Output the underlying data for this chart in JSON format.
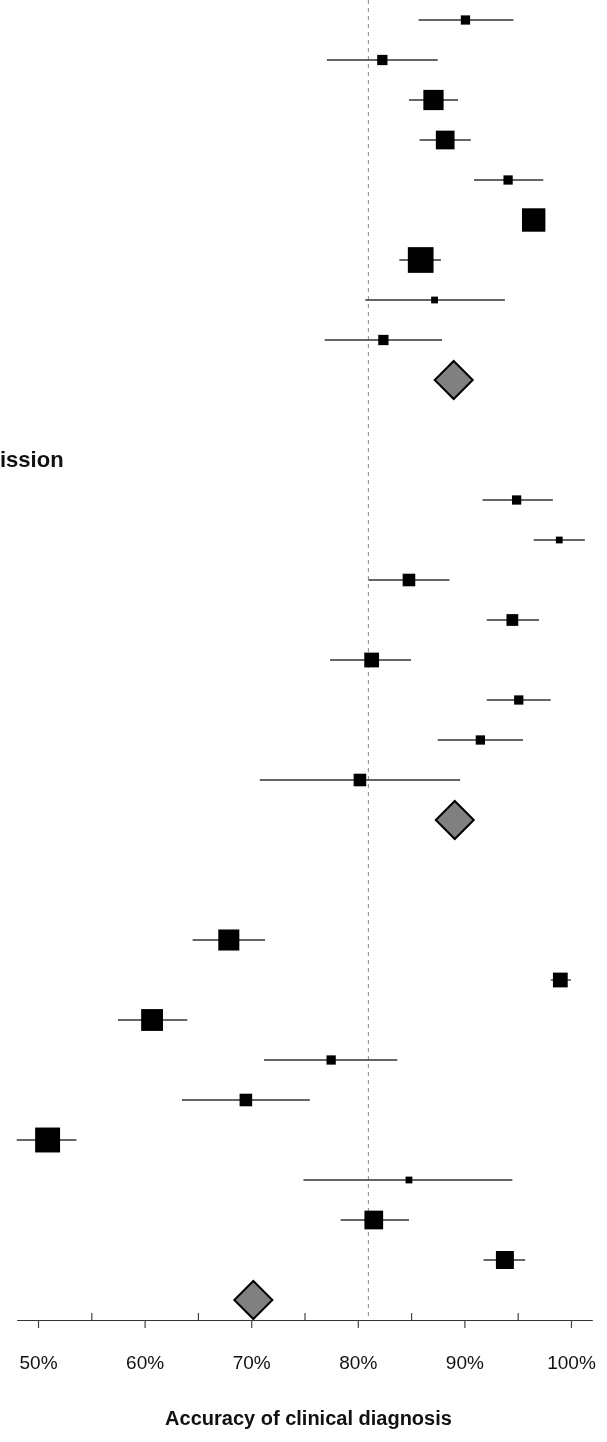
{
  "chart_data": {
    "type": "bubble",
    "orientation": "horizontal",
    "xlabel": "Accuracy of clinical diagnosis",
    "annotations": [
      "ission"
    ],
    "categories": [
      null,
      null,
      null,
      null,
      null,
      null,
      null,
      null,
      null,
      null,
      null,
      null,
      null,
      null,
      null,
      null,
      null,
      null,
      null,
      null,
      null,
      null,
      null,
      null,
      null,
      null,
      null,
      null,
      null,
      null,
      null,
      null,
      null
    ],
    "xlim": [
      48,
      102
    ],
    "xticks": [
      {
        "value": 50,
        "label": "50%"
      },
      {
        "value": 55,
        "label": null
      },
      {
        "value": 60,
        "label": "60%"
      },
      {
        "value": 65,
        "label": null
      },
      {
        "value": 70,
        "label": "70%"
      },
      {
        "value": 75,
        "label": null
      },
      {
        "value": 80,
        "label": "80%"
      },
      {
        "value": 85,
        "label": null
      },
      {
        "value": 90,
        "label": "90%"
      },
      {
        "value": 95,
        "label": null
      },
      {
        "value": 100,
        "label": "100%"
      }
    ],
    "ref_lines": [
      {
        "axis": "x",
        "value": 81,
        "color": "#999999",
        "line_style": "dashed"
      }
    ],
    "grid": false,
    "tick_labels": "x",
    "series": [
      {
        "marker": "square",
        "color": "#000000",
        "values": [
          90.1,
          82.3,
          87.1,
          88.2,
          94.1,
          96.5,
          85.9,
          87.2,
          82.4,
          null,
          null,
          null,
          94.9,
          98.9,
          84.8,
          94.5,
          81.3,
          95.1,
          91.5,
          80.2,
          null,
          null,
          null,
          67.9,
          99.0,
          60.7,
          77.5,
          69.5,
          50.9,
          84.8,
          81.5,
          93.8,
          null
        ],
        "sizes": [
          0.13,
          0.16,
          0.62,
          0.53,
          0.13,
          0.83,
          1,
          0.07,
          0.16,
          null,
          null,
          null,
          0.13,
          0.07,
          0.24,
          0.21,
          0.33,
          0.13,
          0.13,
          0.24,
          null,
          null,
          null,
          0.67,
          0.33,
          0.72,
          0.13,
          0.24,
          0.94,
          0.07,
          0.53,
          0.49,
          null
        ],
        "errors": [
          [
            85.7,
            94.6
          ],
          [
            77.1,
            87.5
          ],
          [
            84.8,
            89.4
          ],
          [
            85.8,
            90.6
          ],
          [
            90.9,
            97.4
          ],
          null,
          [
            83.9,
            87.8
          ],
          [
            80.7,
            93.8
          ],
          [
            76.9,
            87.9
          ],
          null,
          null,
          null,
          [
            91.7,
            98.3
          ],
          [
            96.5,
            101.3
          ],
          [
            81.0,
            88.6
          ],
          [
            92.1,
            97.0
          ],
          [
            77.4,
            85.0
          ],
          [
            92.1,
            98.1
          ],
          [
            87.5,
            95.5
          ],
          [
            70.8,
            89.6
          ],
          null,
          null,
          null,
          [
            64.5,
            71.3
          ],
          [
            98.1,
            100.0
          ],
          [
            57.5,
            64.0
          ],
          [
            71.2,
            83.7
          ],
          [
            63.5,
            75.5
          ],
          [
            48.0,
            53.6
          ],
          [
            74.9,
            94.5
          ],
          [
            78.4,
            84.8
          ],
          [
            91.8,
            95.7
          ],
          null
        ]
      },
      {
        "type": "scatter",
        "marker": "diamond",
        "color": "#808080",
        "values": [
          null,
          null,
          null,
          null,
          null,
          null,
          null,
          null,
          null,
          89.0,
          null,
          null,
          null,
          null,
          null,
          null,
          null,
          null,
          null,
          null,
          89.1,
          null,
          null,
          null,
          null,
          null,
          null,
          null,
          null,
          null,
          null,
          null,
          70.2
        ]
      }
    ]
  }
}
